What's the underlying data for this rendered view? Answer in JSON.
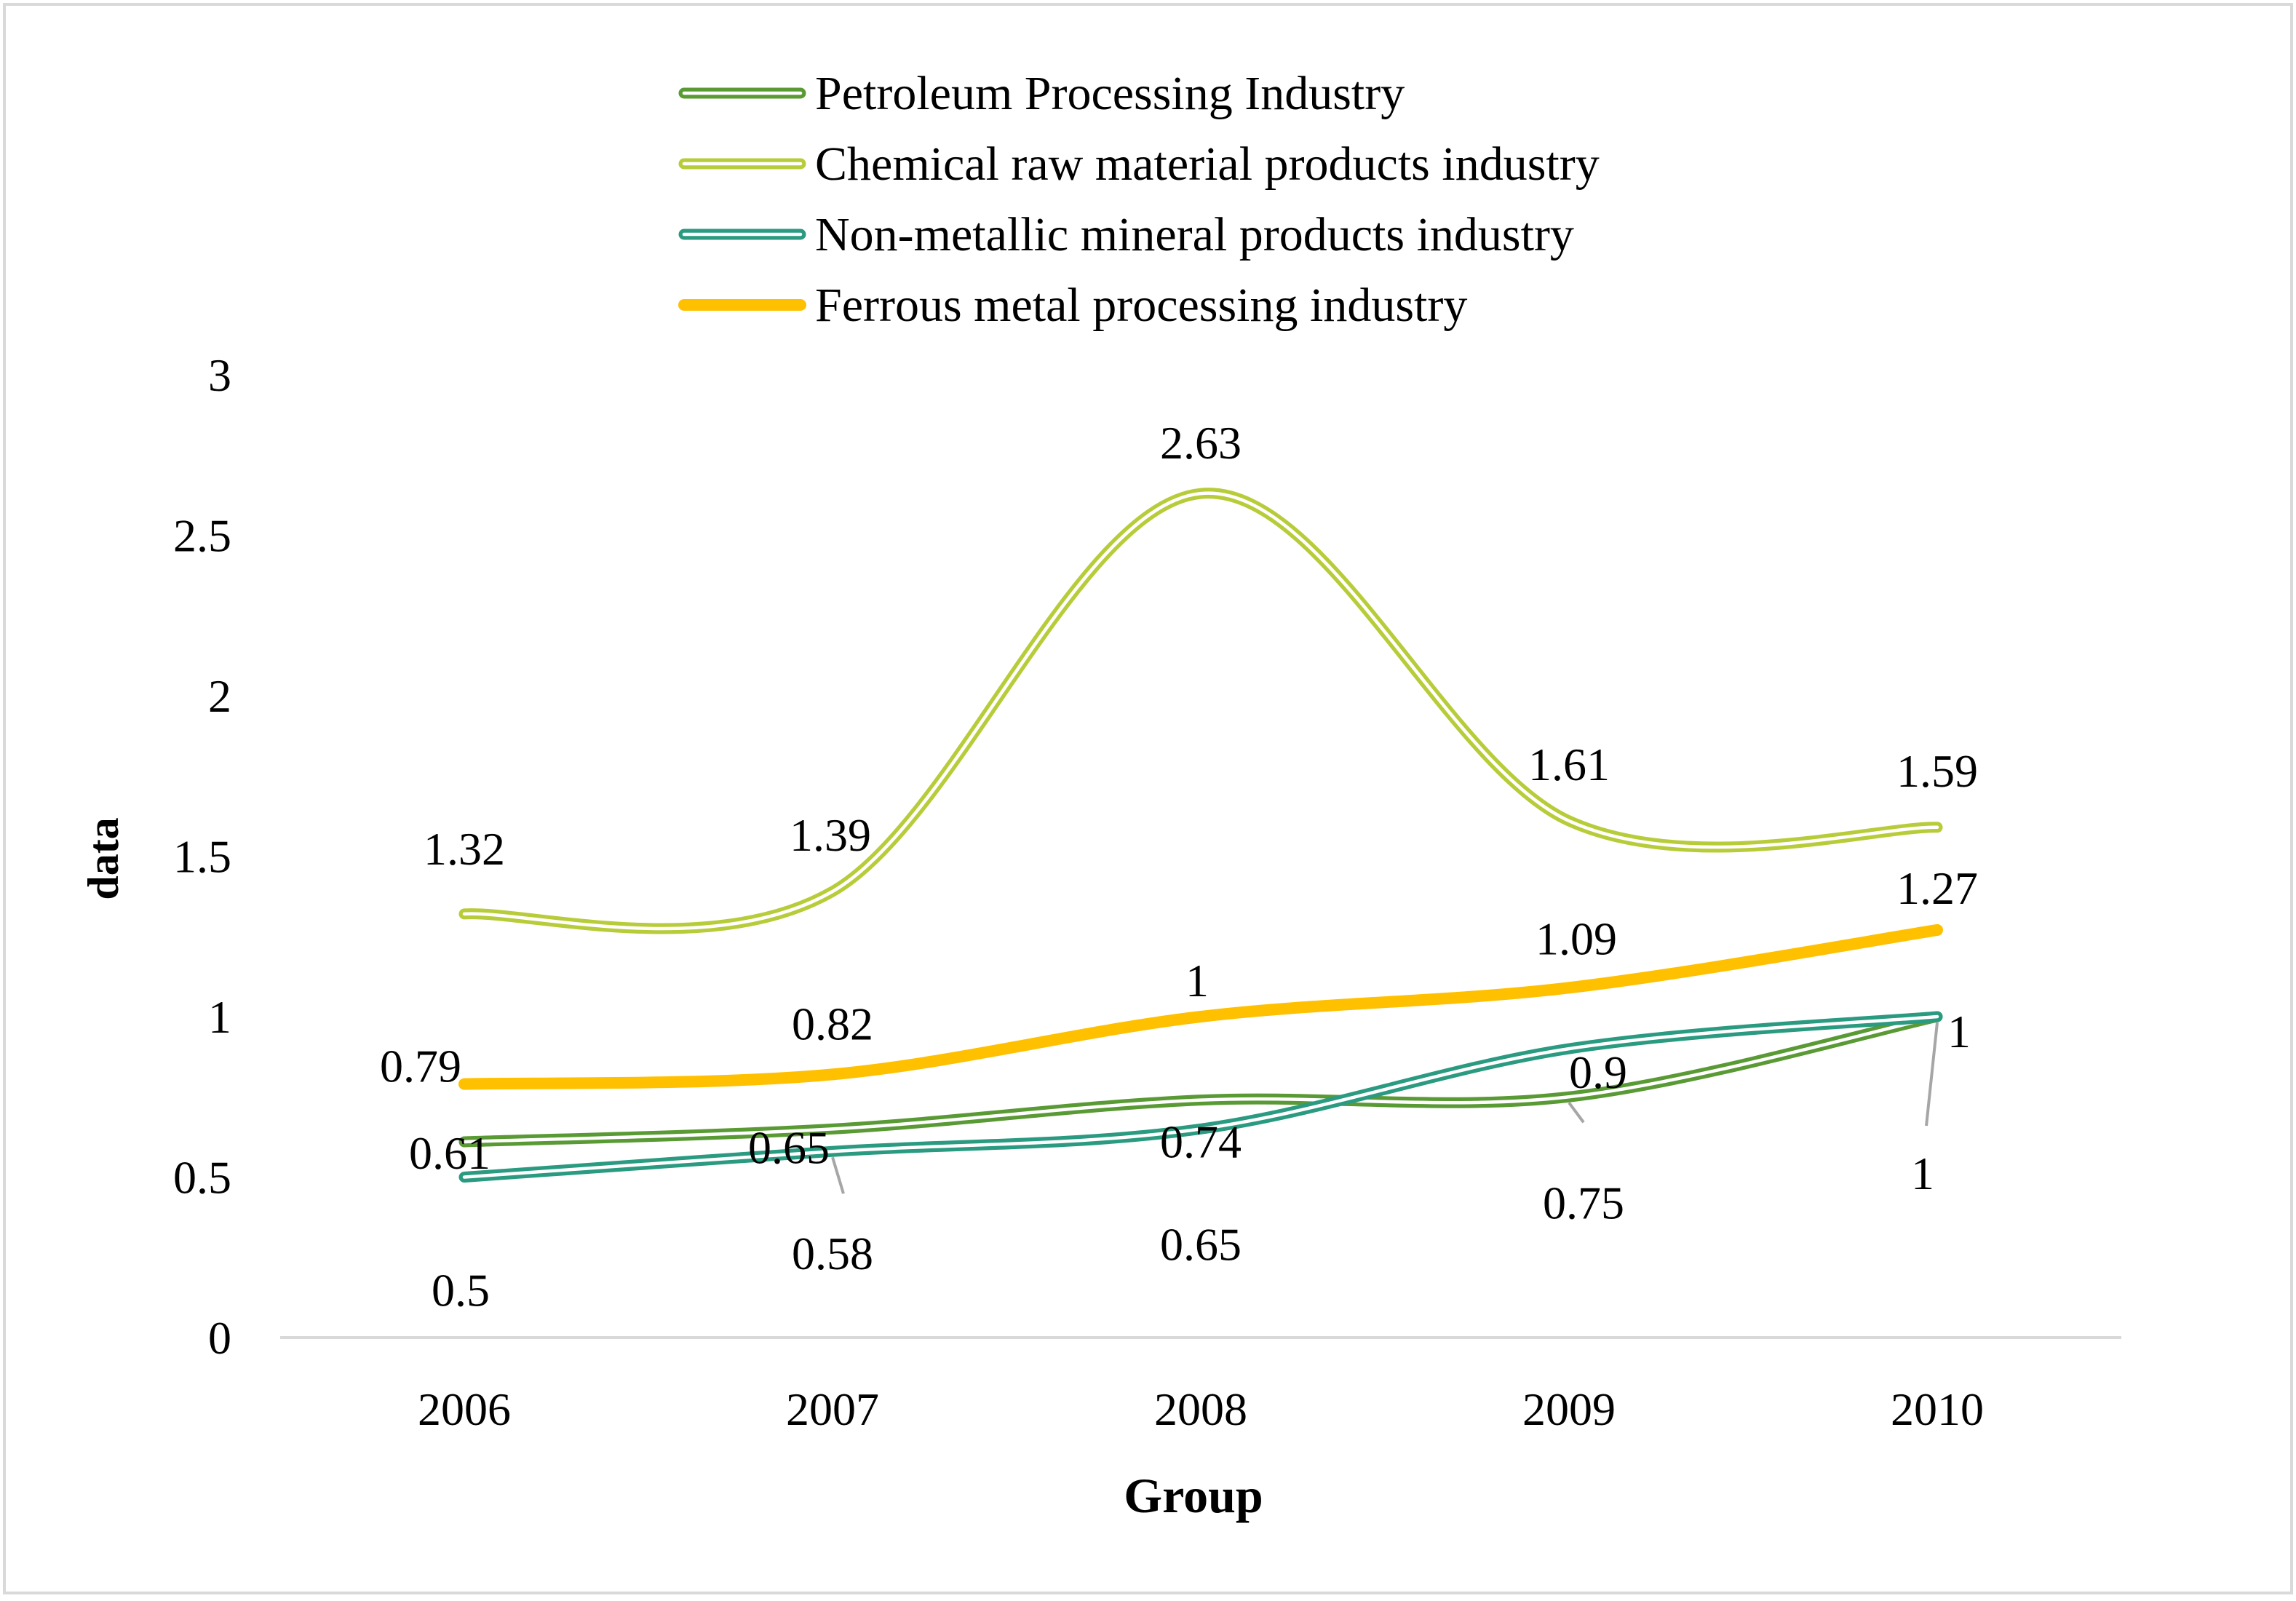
{
  "colors": {
    "petroleum": "#5a9a35",
    "chemical": "#b8cc3a",
    "nonmetallic": "#2a9a80",
    "ferrous": "#ffc000",
    "axis": "#d9d9d9",
    "leader": "#a6a6a6",
    "frame": "#d9d9d9"
  },
  "chart_data": {
    "type": "line",
    "title": "",
    "xlabel": "Group",
    "ylabel": "data",
    "categories": [
      "2006",
      "2007",
      "2008",
      "2009",
      "2010"
    ],
    "ylim": [
      0,
      3
    ],
    "yticks": [
      0,
      0.5,
      1,
      1.5,
      2,
      2.5,
      3
    ],
    "ytick_labels": [
      "0",
      "0.5",
      "1",
      "1.5",
      "2",
      "2.5",
      "3"
    ],
    "grid": false,
    "smooth": true,
    "legend_position": "top",
    "series": [
      {
        "key": "petroleum",
        "name": "Petroleum Processing Industry",
        "values": [
          0.61,
          0.65,
          0.74,
          0.75,
          1
        ],
        "labels": [
          "0.61",
          "0.65",
          "0.74",
          "0.75",
          "1"
        ],
        "style": "double"
      },
      {
        "key": "chemical",
        "name": "Chemical raw material products industry",
        "values": [
          1.32,
          1.39,
          2.63,
          1.61,
          1.59
        ],
        "labels": [
          "1.32",
          "1.39",
          "2.63",
          "1.61",
          "1.59"
        ],
        "style": "double"
      },
      {
        "key": "nonmetallic",
        "name": "Non-metallic mineral products industry",
        "values": [
          0.5,
          0.58,
          0.65,
          0.9,
          1
        ],
        "labels": [
          "0.5",
          "0.58",
          "0.65",
          "0.9",
          "1"
        ],
        "style": "double"
      },
      {
        "key": "ferrous",
        "name": "Ferrous metal processing industry",
        "values": [
          0.79,
          0.82,
          1,
          1.09,
          1.27
        ],
        "labels": [
          "0.79",
          "0.82",
          "1",
          "1.09",
          "1.27"
        ],
        "style": "solid"
      }
    ]
  }
}
